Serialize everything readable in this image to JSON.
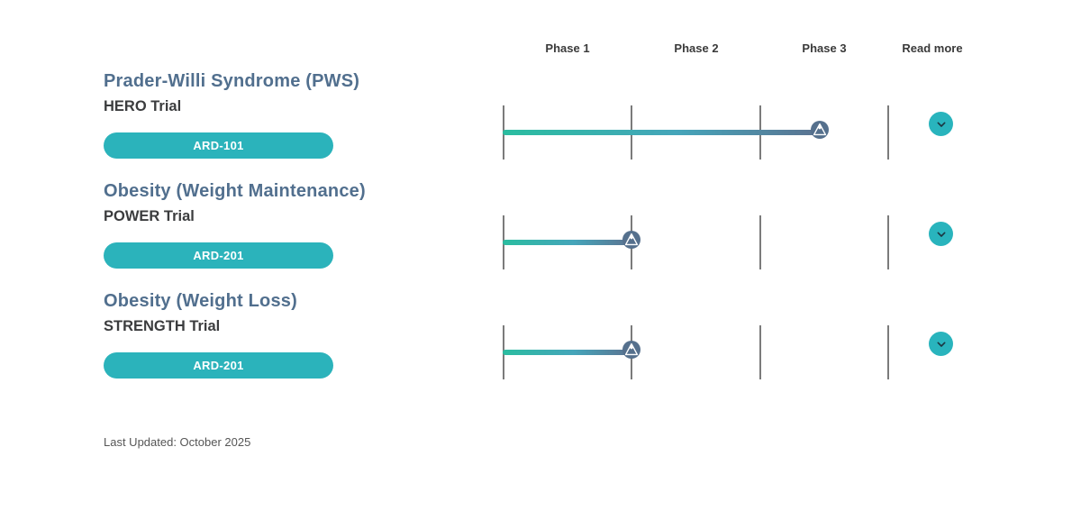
{
  "header": {
    "columns": [
      "Phase 1",
      "Phase 2",
      "Phase 3",
      "Read more"
    ]
  },
  "rows": [
    {
      "indication": "Prader-Willi Syndrome (PWS)",
      "trial": "HERO Trial",
      "program": "ARD-101",
      "progress_pct": 82,
      "phases_completed": 2.46,
      "read_more_icon": "chevron-down-icon"
    },
    {
      "indication": "Obesity (Weight Maintenance)",
      "trial": "POWER Trial",
      "program": "ARD-201",
      "progress_pct": 33.33,
      "phases_completed": 1.0,
      "read_more_icon": "chevron-down-icon"
    },
    {
      "indication": "Obesity (Weight Loss)",
      "trial": "STRENGTH Trial",
      "program": "ARD-201",
      "progress_pct": 33.33,
      "phases_completed": 1.0,
      "read_more_icon": "chevron-down-icon"
    }
  ],
  "footer": {
    "last_updated": "Last Updated: October 2025"
  },
  "colors": {
    "accent_teal": "#2bb3bb",
    "bar_gradient_start": "#2abda0",
    "bar_gradient_mid": "#45a5ba",
    "bar_gradient_end": "#5b7290",
    "marker_circle": "#55708d",
    "indication_text": "#516f8e",
    "trial_text": "#3b3c3e",
    "tick_gray": "#7b7b7b"
  },
  "chart_data": {
    "type": "bar",
    "title": "Clinical trial pipeline progress by phase",
    "categories": [
      "Prader-Willi Syndrome (PWS) / HERO Trial / ARD-101",
      "Obesity (Weight Maintenance) / POWER Trial / ARD-201",
      "Obesity (Weight Loss) / STRENGTH Trial / ARD-201"
    ],
    "values": [
      2.46,
      1.0,
      1.0
    ],
    "xlabel": "Phase",
    "ylabel": "",
    "x_ticks": [
      "Phase 1",
      "Phase 2",
      "Phase 3"
    ],
    "xlim": [
      0,
      3
    ],
    "grid": false,
    "legend_position": "none",
    "annotations": [
      "Last Updated: October 2025"
    ]
  }
}
